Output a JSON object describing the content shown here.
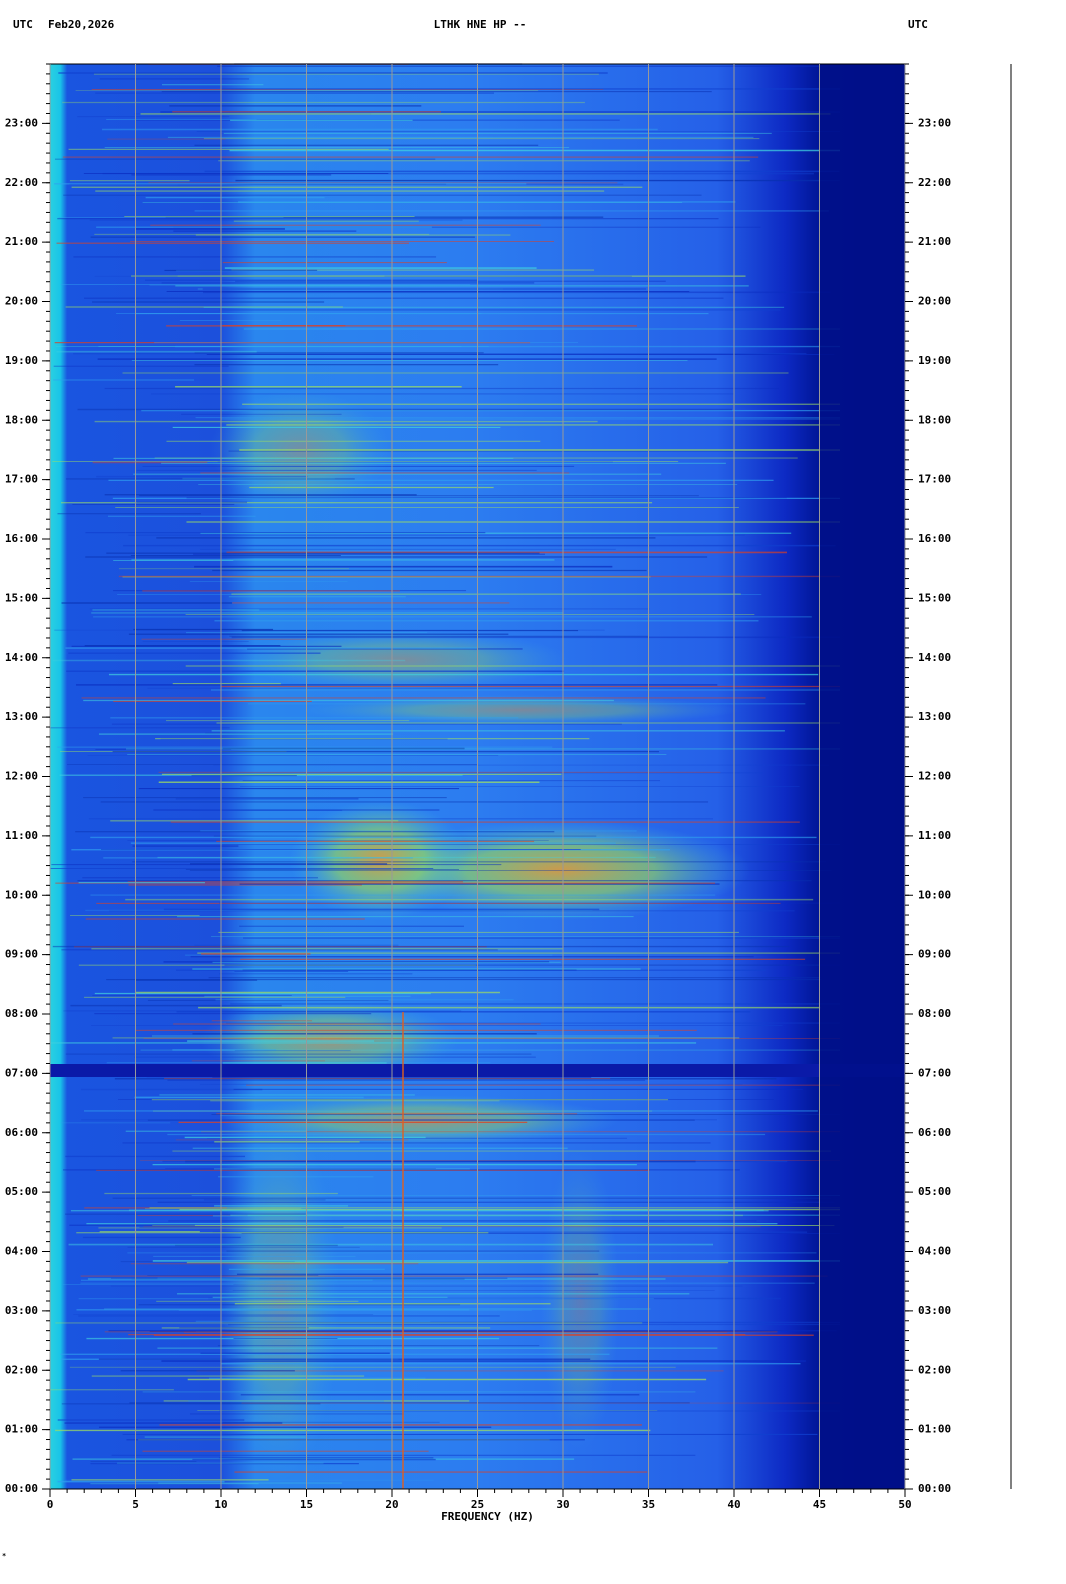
{
  "chart_data": {
    "type": "spectrogram",
    "header_left_zone": "UTC",
    "date": "Feb20,2026",
    "title": "LTHK HNE HP --",
    "header_right_zone": "UTC",
    "xlabel": "FREQUENCY (HZ)",
    "xlim": [
      0,
      50
    ],
    "xticks": [
      0,
      5,
      10,
      15,
      20,
      25,
      30,
      35,
      40,
      45,
      50
    ],
    "ylim": [
      0,
      24
    ],
    "yticks": [
      {
        "value": 0,
        "label": "00:00"
      },
      {
        "value": 1,
        "label": "01:00"
      },
      {
        "value": 2,
        "label": "02:00"
      },
      {
        "value": 3,
        "label": "03:00"
      },
      {
        "value": 4,
        "label": "04:00"
      },
      {
        "value": 5,
        "label": "05:00"
      },
      {
        "value": 6,
        "label": "06:00"
      },
      {
        "value": 7,
        "label": "07:00"
      },
      {
        "value": 8,
        "label": "08:00"
      },
      {
        "value": 9,
        "label": "09:00"
      },
      {
        "value": 10,
        "label": "10:00"
      },
      {
        "value": 11,
        "label": "11:00"
      },
      {
        "value": 12,
        "label": "12:00"
      },
      {
        "value": 13,
        "label": "13:00"
      },
      {
        "value": 14,
        "label": "14:00"
      },
      {
        "value": 15,
        "label": "15:00"
      },
      {
        "value": 16,
        "label": "16:00"
      },
      {
        "value": 17,
        "label": "17:00"
      },
      {
        "value": 18,
        "label": "18:00"
      },
      {
        "value": 19,
        "label": "19:00"
      },
      {
        "value": 20,
        "label": "20:00"
      },
      {
        "value": 21,
        "label": "21:00"
      },
      {
        "value": 22,
        "label": "22:00"
      },
      {
        "value": 23,
        "label": "23:00"
      }
    ],
    "grid": true
  }
}
